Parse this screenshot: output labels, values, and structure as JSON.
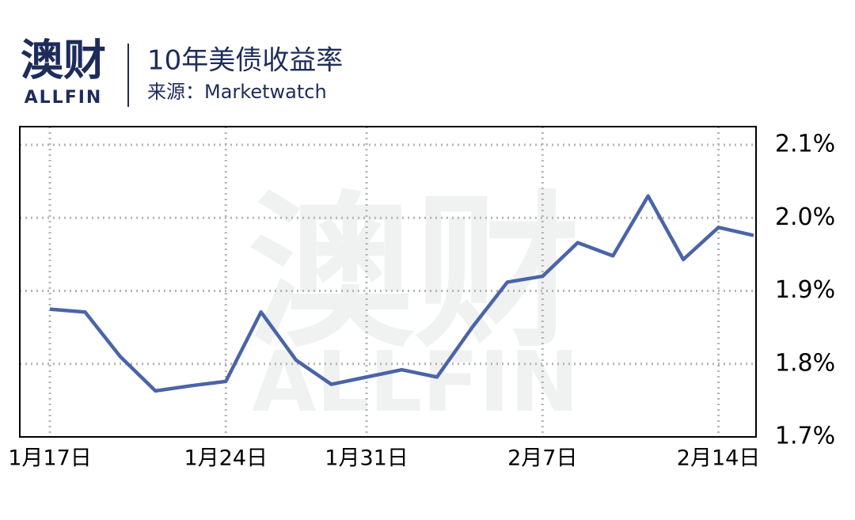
{
  "brand": {
    "name": "澳财",
    "latin": "ALLFIN"
  },
  "chart_data": {
    "type": "line",
    "title": "10年美债收益率",
    "subtitle": "来源：Marketwatch",
    "categories": [
      "1月17日",
      null,
      null,
      null,
      null,
      "1月24日",
      null,
      null,
      null,
      "1月31日",
      null,
      null,
      null,
      null,
      "2月7日",
      null,
      null,
      null,
      null,
      "2月14日",
      null
    ],
    "series": [
      {
        "name": "10年美债收益率",
        "color": "#4a64a8",
        "values": [
          1.875,
          1.871,
          1.81,
          1.763,
          1.77,
          1.776,
          1.871,
          1.805,
          1.772,
          1.782,
          1.792,
          1.782,
          1.85,
          1.912,
          1.92,
          1.966,
          1.948,
          2.03,
          1.943,
          1.987,
          1.976
        ]
      }
    ],
    "ylim": [
      1.7,
      2.125
    ],
    "yticks": [
      {
        "value": 1.7,
        "label": "1.7%"
      },
      {
        "value": 1.8,
        "label": "1.8%"
      },
      {
        "value": 1.9,
        "label": "1.9%"
      },
      {
        "value": 2.0,
        "label": "2.0%"
      },
      {
        "value": 2.1,
        "label": "2.1%"
      }
    ],
    "grid": true
  }
}
